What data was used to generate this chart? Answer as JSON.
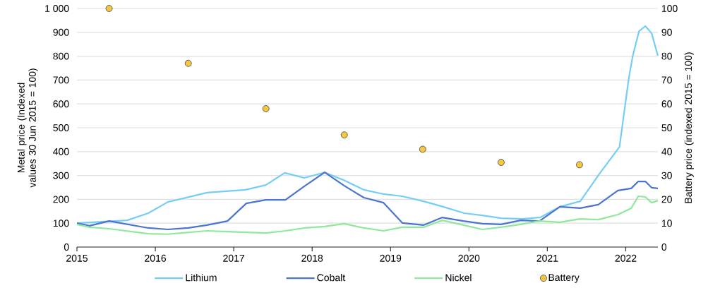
{
  "chart_data": {
    "type": "line",
    "ylabel": "Metal price (Indexed values 30 Jun 2015 = 100)",
    "y2label": "Battery price (indexed 2015 = 100)",
    "xlim": [
      2015,
      2022.41
    ],
    "xticks": [
      2015,
      2016,
      2017,
      2018,
      2019,
      2020,
      2021,
      2022
    ],
    "ylim": [
      0,
      1000
    ],
    "yticks": [
      0,
      100,
      200,
      300,
      400,
      500,
      600,
      700,
      800,
      900,
      {
        "value": 1000,
        "label": "1 000"
      }
    ],
    "y2lim": [
      0,
      100
    ],
    "y2ticks": [
      0,
      10,
      20,
      30,
      40,
      50,
      60,
      70,
      80,
      90,
      100
    ],
    "grid": "y",
    "legend": "bottom",
    "series": [
      {
        "name": "Lithium",
        "type": "line",
        "marker": "none",
        "color": "#75cdf5",
        "x": [
          2015,
          2015.64,
          2015.91,
          2016.16,
          2016.66,
          2017.15,
          2017.41,
          2017.65,
          2017.9,
          2018.16,
          2018.4,
          2018.66,
          2018.91,
          2019.15,
          2019.42,
          2019.67,
          2019.94,
          2020.17,
          2020.41,
          2020.68,
          2020.91,
          2021.16,
          2021.42,
          2021.66,
          2021.92,
          2022.04,
          2022.09,
          2022.17,
          2022.25,
          2022.33,
          2022.41
        ],
        "values": [
          100,
          112,
          142,
          189,
          228,
          240,
          260,
          311,
          290,
          313,
          281,
          240,
          222,
          213,
          192,
          169,
          142,
          133,
          121,
          118,
          124,
          169,
          192,
          305,
          420,
          710,
          802,
          905,
          926,
          896,
          802
        ]
      },
      {
        "name": "Cobalt",
        "type": "line",
        "marker": "none",
        "color": "#4a74d0",
        "x": [
          2015,
          2015.16,
          2015.41,
          2015.91,
          2016.16,
          2016.42,
          2016.66,
          2016.92,
          2017.16,
          2017.41,
          2017.66,
          2017.91,
          2018.16,
          2018.41,
          2018.66,
          2018.91,
          2019.15,
          2019.42,
          2019.66,
          2019.93,
          2020.17,
          2020.41,
          2020.66,
          2020.9,
          2021.16,
          2021.42,
          2021.65,
          2021.9,
          2022.07,
          2022.16,
          2022.25,
          2022.33,
          2022.41
        ],
        "values": [
          100,
          89,
          109,
          80,
          74,
          80,
          92,
          109,
          183,
          198,
          198,
          257,
          313,
          257,
          207,
          186,
          101,
          92,
          124,
          109,
          98,
          95,
          112,
          109,
          169,
          163,
          178,
          237,
          246,
          275,
          275,
          249,
          246
        ]
      },
      {
        "name": "Nickel",
        "type": "line",
        "marker": "none",
        "color": "#90e89a",
        "x": [
          2015,
          2015.16,
          2015.41,
          2015.91,
          2016.16,
          2016.66,
          2016.92,
          2017.41,
          2017.66,
          2017.91,
          2018.16,
          2018.41,
          2018.66,
          2018.91,
          2019.15,
          2019.42,
          2019.66,
          2019.93,
          2020.17,
          2020.41,
          2020.66,
          2020.9,
          2021.16,
          2021.42,
          2021.65,
          2021.9,
          2022.07,
          2022.16,
          2022.25,
          2022.33,
          2022.41
        ],
        "values": [
          95,
          83,
          77,
          56,
          54,
          68,
          65,
          59,
          68,
          80,
          86,
          98,
          80,
          68,
          83,
          83,
          112,
          92,
          74,
          83,
          95,
          109,
          104,
          118,
          115,
          136,
          163,
          213,
          210,
          186,
          195
        ]
      },
      {
        "name": "Battery",
        "type": "scatter",
        "marker": "circle",
        "axis": "y2",
        "color": "#f5c842",
        "x": [
          2015.41,
          2016.42,
          2017.41,
          2018.41,
          2019.41,
          2020.41,
          2021.41
        ],
        "values": [
          100,
          77,
          58,
          47,
          41,
          35.5,
          34.5
        ]
      }
    ]
  }
}
